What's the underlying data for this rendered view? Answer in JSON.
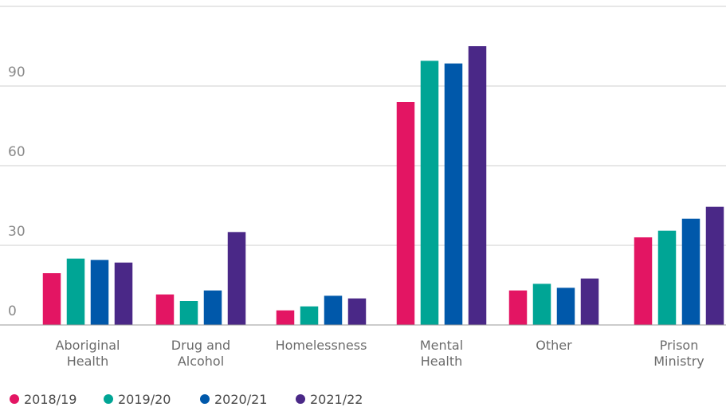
{
  "chart_data": {
    "type": "bar",
    "title": "",
    "xlabel": "",
    "ylabel": "",
    "ylim": [
      0,
      120
    ],
    "yticks": [
      0,
      30,
      60,
      90
    ],
    "grid": true,
    "legend_position": "bottom-left",
    "categories": [
      [
        "Aboriginal",
        "Health"
      ],
      [
        "Drug and",
        "Alcohol"
      ],
      [
        "Homelessness"
      ],
      [
        "Mental",
        "Health"
      ],
      [
        "Other"
      ],
      [
        "Prison",
        "Ministry"
      ]
    ],
    "series": [
      {
        "name": "2018/19",
        "color": "#e31563",
        "values": [
          19.5,
          11.5,
          5.5,
          84,
          13,
          33
        ]
      },
      {
        "name": "2019/20",
        "color": "#00a595",
        "values": [
          25,
          9,
          7,
          99.5,
          15.5,
          35.5
        ]
      },
      {
        "name": "2020/21",
        "color": "#0058aa",
        "values": [
          24.5,
          13,
          11,
          98.5,
          14,
          40
        ]
      },
      {
        "name": "2021/22",
        "color": "#4a2887",
        "values": [
          23.5,
          35,
          10,
          105,
          17.5,
          44.5
        ]
      }
    ]
  }
}
